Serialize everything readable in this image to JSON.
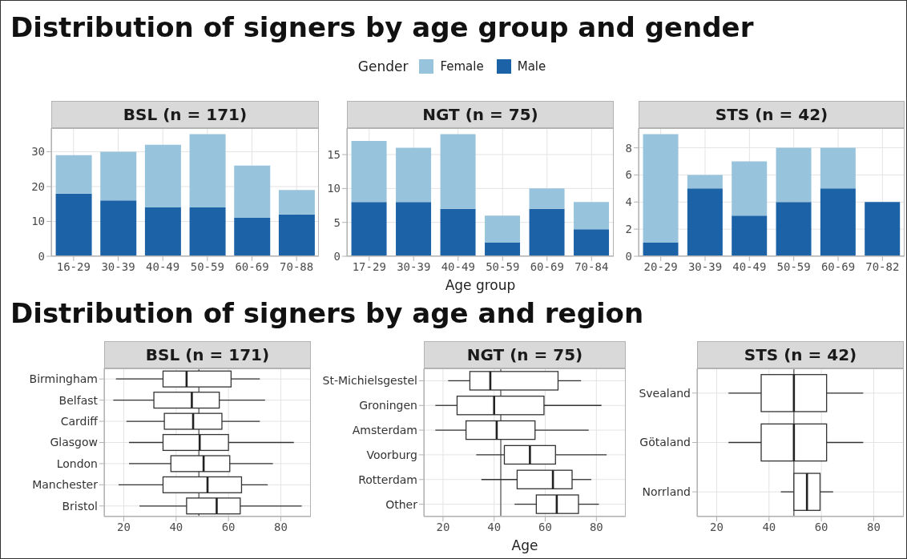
{
  "chart_data": [
    {
      "type": "bar",
      "stacked": true,
      "title": "Distribution of signers by age group and gender",
      "subtitle": "BSL (n = 171)",
      "legend": "top",
      "legend_title": "Gender",
      "categories": [
        "16-29",
        "30-39",
        "40-49",
        "50-59",
        "60-69",
        "70-88"
      ],
      "series": [
        {
          "name": "Male",
          "color": "#1c62a6",
          "values": [
            18,
            16,
            14,
            14,
            11,
            12
          ]
        },
        {
          "name": "Female",
          "color": "#97c3dc",
          "values": [
            11,
            14,
            18,
            21,
            15,
            7
          ]
        }
      ],
      "ylim": [
        0,
        36.75
      ],
      "yticks": [
        0,
        10,
        20,
        30
      ],
      "grid": true
    },
    {
      "type": "bar",
      "stacked": true,
      "subtitle": "NGT (n = 75)",
      "xlabel": "Age group",
      "categories": [
        "17-29",
        "30-39",
        "40-49",
        "50-59",
        "60-69",
        "70-84"
      ],
      "series": [
        {
          "color": "#1c62a6",
          "values": [
            8,
            8,
            7,
            2,
            7,
            4
          ]
        },
        {
          "color": "#97c3dc",
          "values": [
            9,
            8,
            11,
            4,
            3,
            4
          ]
        }
      ],
      "ylim": [
        0,
        18.9
      ],
      "yticks": [
        0,
        5,
        10,
        15
      ],
      "grid": true
    },
    {
      "type": "bar",
      "stacked": true,
      "subtitle": "STS (n = 42)",
      "categories": [
        "20-29",
        "30-39",
        "40-49",
        "50-59",
        "60-69",
        "70-82"
      ],
      "series": [
        {
          "color": "#1c62a6",
          "values": [
            1,
            5,
            3,
            4,
            5,
            4
          ]
        },
        {
          "color": "#97c3dc",
          "values": [
            8,
            1,
            4,
            4,
            3,
            0
          ]
        }
      ],
      "ylim": [
        0,
        9.45
      ],
      "yticks": [
        0,
        2,
        4,
        6,
        8
      ],
      "grid": true
    },
    {
      "type": "box",
      "orientation": "horizontal",
      "title": "Distribution of signers by age and region",
      "subtitle": "BSL (n = 171)",
      "categories": [
        "Birmingham",
        "Belfast",
        "Cardiff",
        "Glasgow",
        "London",
        "Manchester",
        "Bristol"
      ],
      "boxes": [
        {
          "low": 17,
          "q1": 35,
          "median": 44,
          "q3": 61,
          "high": 72
        },
        {
          "low": 16,
          "q1": 31.5,
          "median": 46,
          "q3": 56.5,
          "high": 74
        },
        {
          "low": 21,
          "q1": 35.5,
          "median": 46.5,
          "q3": 57.5,
          "high": 72
        },
        {
          "low": 22,
          "q1": 35,
          "median": 49,
          "q3": 60,
          "high": 85
        },
        {
          "low": 22,
          "q1": 38,
          "median": 50.5,
          "q3": 60.5,
          "high": 77
        },
        {
          "low": 18,
          "q1": 35,
          "median": 52,
          "q3": 65,
          "high": 75
        },
        {
          "low": 26,
          "q1": 44,
          "median": 55.5,
          "q3": 64.5,
          "high": 88
        }
      ],
      "xlim": [
        12.5,
        91.5
      ],
      "xticks": [
        20,
        40,
        60,
        80
      ],
      "ref_lines": [
        {
          "axis": "x",
          "value": 48.7
        }
      ],
      "grid": true
    },
    {
      "type": "box",
      "orientation": "horizontal",
      "subtitle": "NGT (n = 75)",
      "xlabel": "Age",
      "categories": [
        "St-Michielsgestel",
        "Groningen",
        "Amsterdam",
        "Voorburg",
        "Rotterdam",
        "Other"
      ],
      "boxes": [
        {
          "low": 22,
          "q1": 30.5,
          "median": 38.5,
          "q3": 65,
          "high": 74
        },
        {
          "low": 17,
          "q1": 25.5,
          "median": 40,
          "q3": 59.5,
          "high": 82
        },
        {
          "low": 17,
          "q1": 29,
          "median": 41,
          "q3": 56,
          "high": 77
        },
        {
          "low": 33,
          "q1": 44,
          "median": 54,
          "q3": 64,
          "high": 84
        },
        {
          "low": 35,
          "q1": 49,
          "median": 63,
          "q3": 70.5,
          "high": 78
        },
        {
          "low": 48,
          "q1": 56.5,
          "median": 64.5,
          "q3": 73,
          "high": 81
        }
      ],
      "xlim": [
        12.5,
        91.5
      ],
      "xticks": [
        20,
        40,
        60,
        80
      ],
      "ref_lines": [
        {
          "axis": "x",
          "value": 42.6
        }
      ],
      "grid": true
    },
    {
      "type": "box",
      "orientation": "horizontal",
      "subtitle": "STS (n = 42)",
      "categories": [
        "Svealand",
        "Götaland",
        "Norrland"
      ],
      "boxes": [
        {
          "low": 24.5,
          "q1": 37,
          "median": 49.5,
          "q3": 62,
          "high": 76
        },
        {
          "low": 24.5,
          "q1": 37,
          "median": 49.5,
          "q3": 62,
          "high": 76
        },
        {
          "low": 44.5,
          "q1": 49.5,
          "median": 54.5,
          "q3": 59.5,
          "high": 64.5
        }
      ],
      "xlim": [
        12.5,
        91.5
      ],
      "xticks": [
        20,
        40,
        60,
        80
      ],
      "ref_lines": [
        {
          "axis": "x",
          "value": 49.5
        }
      ],
      "grid": true
    }
  ]
}
